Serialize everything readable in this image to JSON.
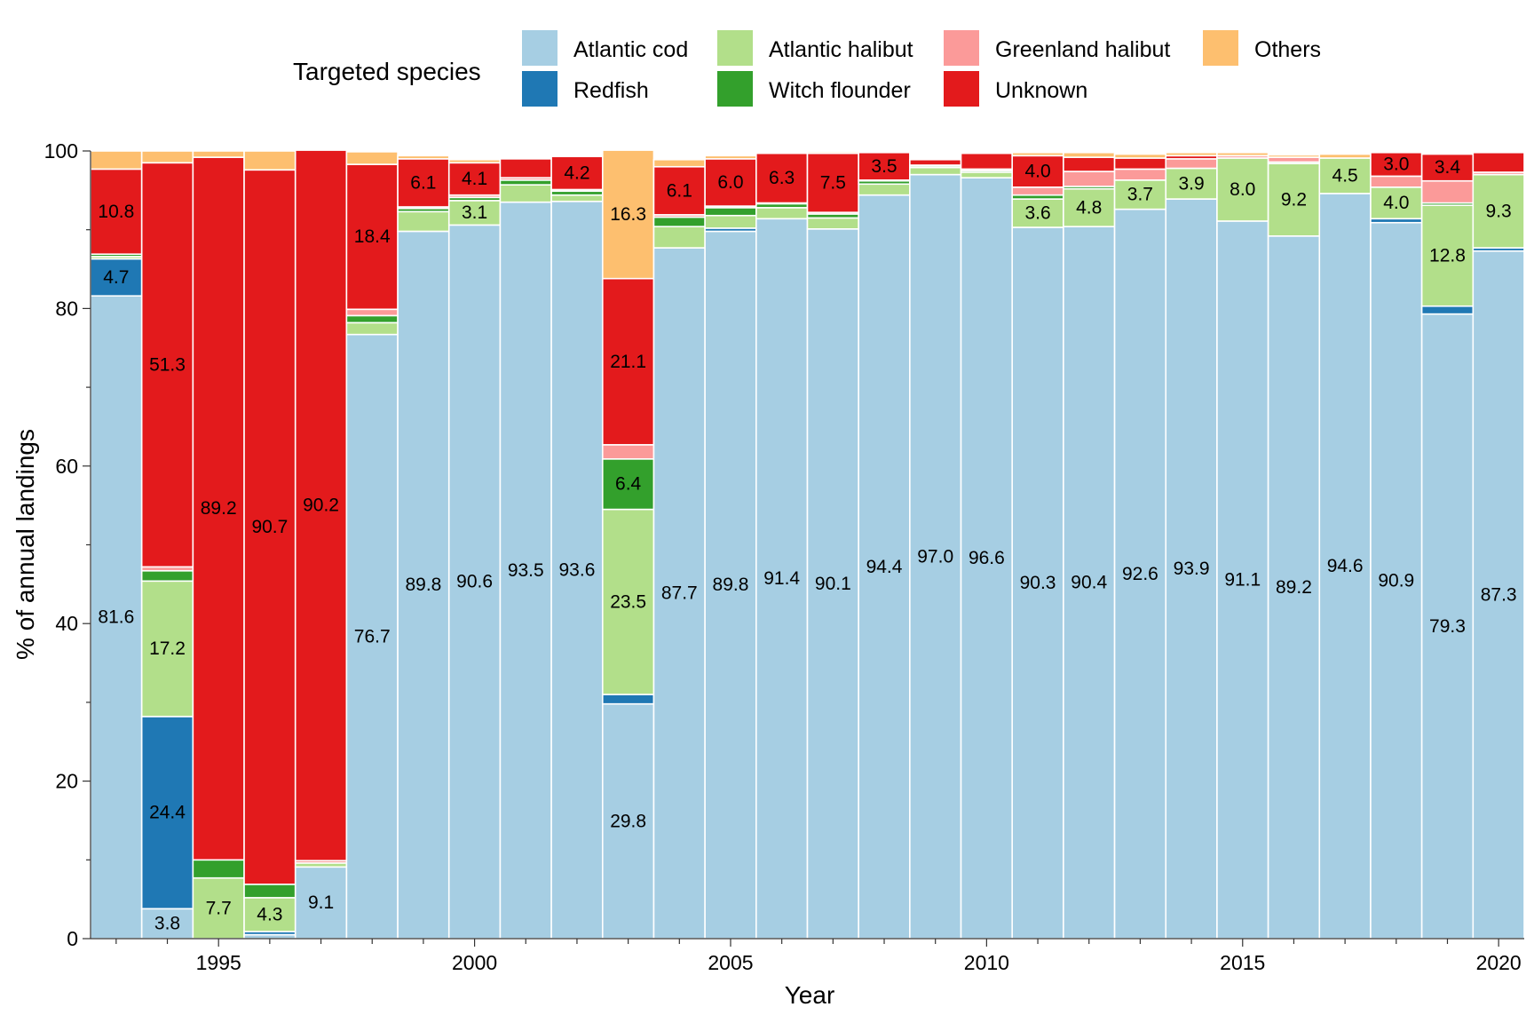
{
  "chart_data": {
    "type": "bar",
    "stacked": true,
    "xlabel": "Year",
    "ylabel": "% of annual landings",
    "ylim": [
      0,
      100
    ],
    "yticks": [
      0,
      20,
      40,
      60,
      80,
      100
    ],
    "xtick_labels": [
      "1995",
      "2000",
      "2005",
      "2010",
      "2015",
      "2020"
    ],
    "grid": false,
    "legend_title": "Targeted species",
    "legend_position": "top",
    "categories": [
      1993,
      1994,
      1995,
      1996,
      1997,
      1998,
      1999,
      2000,
      2001,
      2002,
      2003,
      2004,
      2005,
      2006,
      2007,
      2008,
      2009,
      2010,
      2011,
      2012,
      2013,
      2014,
      2015,
      2016,
      2017,
      2018,
      2019,
      2020
    ],
    "series": [
      {
        "name": "Atlantic cod",
        "color": "#a6cee3",
        "values": [
          81.6,
          3.8,
          0.0,
          0.5,
          9.1,
          76.7,
          89.8,
          90.6,
          93.5,
          93.6,
          29.8,
          87.7,
          89.8,
          91.4,
          90.1,
          94.4,
          97.0,
          96.6,
          90.3,
          90.4,
          92.6,
          93.9,
          91.1,
          89.2,
          94.6,
          90.9,
          79.3,
          87.3
        ]
      },
      {
        "name": "Redfish",
        "color": "#1f78b4",
        "values": [
          4.7,
          24.4,
          0.0,
          0.4,
          0.0,
          0.0,
          0.0,
          0.0,
          0.0,
          0.0,
          1.2,
          0.0,
          0.4,
          0.0,
          0.0,
          0.0,
          0.0,
          0.0,
          0.0,
          0.0,
          0.0,
          0.0,
          0.0,
          0.0,
          0.0,
          0.5,
          1.0,
          0.4
        ]
      },
      {
        "name": "Atlantic halibut",
        "color": "#b2df8a",
        "values": [
          0.3,
          17.2,
          7.7,
          4.3,
          0.5,
          1.5,
          2.5,
          3.1,
          2.2,
          0.8,
          23.5,
          2.7,
          1.6,
          1.4,
          1.4,
          1.4,
          0.9,
          0.7,
          3.6,
          4.8,
          3.7,
          3.9,
          8.0,
          9.2,
          4.5,
          4.0,
          12.8,
          9.3
        ]
      },
      {
        "name": "Witch flounder",
        "color": "#33a02c",
        "values": [
          0.3,
          1.3,
          2.3,
          1.7,
          0.0,
          0.9,
          0.4,
          0.4,
          0.6,
          0.5,
          6.4,
          1.2,
          1.0,
          0.5,
          0.5,
          0.4,
          0.2,
          0.2,
          0.5,
          0.3,
          0.0,
          0.0,
          0.0,
          0.2,
          0.0,
          0.0,
          0.3,
          0.0
        ]
      },
      {
        "name": "Greenland halibut",
        "color": "#fb9a99",
        "values": [
          0.0,
          0.5,
          0.0,
          0.0,
          0.3,
          0.8,
          0.2,
          0.3,
          0.3,
          0.2,
          1.8,
          0.3,
          0.2,
          0.1,
          0.2,
          0.1,
          0.1,
          0.2,
          1.0,
          1.9,
          1.4,
          1.2,
          0.3,
          0.6,
          0.0,
          1.4,
          2.8,
          0.3
        ]
      },
      {
        "name": "Unknown",
        "color": "#e31a1c",
        "values": [
          10.8,
          51.3,
          89.2,
          90.7,
          90.2,
          18.4,
          6.1,
          4.1,
          2.4,
          4.2,
          21.1,
          6.1,
          6.0,
          6.3,
          7.5,
          3.5,
          0.7,
          2.0,
          4.0,
          1.8,
          1.4,
          0.4,
          0.0,
          0.0,
          0.0,
          3.0,
          3.4,
          2.5
        ]
      },
      {
        "name": "Others",
        "color": "#fdbf6f",
        "values": [
          2.3,
          1.5,
          0.8,
          2.4,
          0.0,
          1.6,
          0.4,
          0.4,
          0.0,
          0.1,
          16.3,
          0.9,
          0.4,
          0.0,
          0.2,
          0.0,
          0.0,
          0.0,
          0.4,
          0.6,
          0.5,
          0.4,
          0.4,
          0.3,
          0.5,
          0.0,
          0.0,
          0.0
        ]
      }
    ],
    "data_labels": [
      {
        "year": 1993,
        "series": "Atlantic cod",
        "text": "81.6"
      },
      {
        "year": 1993,
        "series": "Redfish",
        "text": "4.7"
      },
      {
        "year": 1993,
        "series": "Unknown",
        "text": "10.8"
      },
      {
        "year": 1994,
        "series": "Atlantic cod",
        "text": "3.8"
      },
      {
        "year": 1994,
        "series": "Redfish",
        "text": "24.4"
      },
      {
        "year": 1994,
        "series": "Atlantic halibut",
        "text": "17.2"
      },
      {
        "year": 1994,
        "series": "Unknown",
        "text": "51.3"
      },
      {
        "year": 1995,
        "series": "Atlantic halibut",
        "text": "7.7"
      },
      {
        "year": 1995,
        "series": "Unknown",
        "text": "89.2"
      },
      {
        "year": 1996,
        "series": "Atlantic halibut",
        "text": "4.3"
      },
      {
        "year": 1996,
        "series": "Unknown",
        "text": "90.7"
      },
      {
        "year": 1997,
        "series": "Atlantic cod",
        "text": "9.1"
      },
      {
        "year": 1997,
        "series": "Unknown",
        "text": "90.2"
      },
      {
        "year": 1998,
        "series": "Atlantic cod",
        "text": "76.7"
      },
      {
        "year": 1998,
        "series": "Unknown",
        "text": "18.4"
      },
      {
        "year": 1999,
        "series": "Atlantic cod",
        "text": "89.8"
      },
      {
        "year": 1999,
        "series": "Unknown",
        "text": "6.1"
      },
      {
        "year": 2000,
        "series": "Atlantic cod",
        "text": "90.6"
      },
      {
        "year": 2000,
        "series": "Atlantic halibut",
        "text": "3.1"
      },
      {
        "year": 2000,
        "series": "Unknown",
        "text": "4.1"
      },
      {
        "year": 2001,
        "series": "Atlantic cod",
        "text": "93.5"
      },
      {
        "year": 2002,
        "series": "Atlantic cod",
        "text": "93.6"
      },
      {
        "year": 2002,
        "series": "Unknown",
        "text": "4.2"
      },
      {
        "year": 2003,
        "series": "Atlantic cod",
        "text": "29.8"
      },
      {
        "year": 2003,
        "series": "Atlantic halibut",
        "text": "23.5"
      },
      {
        "year": 2003,
        "series": "Witch flounder",
        "text": "6.4"
      },
      {
        "year": 2003,
        "series": "Unknown",
        "text": "21.1"
      },
      {
        "year": 2003,
        "series": "Others",
        "text": "16.3"
      },
      {
        "year": 2004,
        "series": "Atlantic cod",
        "text": "87.7"
      },
      {
        "year": 2004,
        "series": "Unknown",
        "text": "6.1"
      },
      {
        "year": 2005,
        "series": "Atlantic cod",
        "text": "89.8"
      },
      {
        "year": 2005,
        "series": "Unknown",
        "text": "6.0"
      },
      {
        "year": 2006,
        "series": "Atlantic cod",
        "text": "91.4"
      },
      {
        "year": 2006,
        "series": "Unknown",
        "text": "6.3"
      },
      {
        "year": 2007,
        "series": "Atlantic cod",
        "text": "90.1"
      },
      {
        "year": 2007,
        "series": "Unknown",
        "text": "7.5"
      },
      {
        "year": 2008,
        "series": "Atlantic cod",
        "text": "94.4"
      },
      {
        "year": 2008,
        "series": "Unknown",
        "text": "3.5"
      },
      {
        "year": 2009,
        "series": "Atlantic cod",
        "text": "97.0"
      },
      {
        "year": 2010,
        "series": "Atlantic cod",
        "text": "96.6"
      },
      {
        "year": 2011,
        "series": "Atlantic cod",
        "text": "90.3"
      },
      {
        "year": 2011,
        "series": "Atlantic halibut",
        "text": "3.6"
      },
      {
        "year": 2011,
        "series": "Unknown",
        "text": "4.0"
      },
      {
        "year": 2012,
        "series": "Atlantic cod",
        "text": "90.4"
      },
      {
        "year": 2012,
        "series": "Atlantic halibut",
        "text": "4.8"
      },
      {
        "year": 2013,
        "series": "Atlantic cod",
        "text": "92.6"
      },
      {
        "year": 2013,
        "series": "Atlantic halibut",
        "text": "3.7"
      },
      {
        "year": 2014,
        "series": "Atlantic cod",
        "text": "93.9"
      },
      {
        "year": 2014,
        "series": "Atlantic halibut",
        "text": "3.9"
      },
      {
        "year": 2015,
        "series": "Atlantic cod",
        "text": "91.1"
      },
      {
        "year": 2015,
        "series": "Atlantic halibut",
        "text": "8.0"
      },
      {
        "year": 2016,
        "series": "Atlantic cod",
        "text": "89.2"
      },
      {
        "year": 2016,
        "series": "Atlantic halibut",
        "text": "9.2"
      },
      {
        "year": 2017,
        "series": "Atlantic cod",
        "text": "94.6"
      },
      {
        "year": 2017,
        "series": "Atlantic halibut",
        "text": "4.5"
      },
      {
        "year": 2018,
        "series": "Atlantic cod",
        "text": "90.9"
      },
      {
        "year": 2018,
        "series": "Atlantic halibut",
        "text": "4.0"
      },
      {
        "year": 2018,
        "series": "Unknown",
        "text": "3.0"
      },
      {
        "year": 2019,
        "series": "Atlantic cod",
        "text": "79.3"
      },
      {
        "year": 2019,
        "series": "Atlantic halibut",
        "text": "12.8"
      },
      {
        "year": 2019,
        "series": "Unknown",
        "text": "3.4"
      },
      {
        "year": 2020,
        "series": "Atlantic cod",
        "text": "87.3"
      },
      {
        "year": 2020,
        "series": "Atlantic halibut",
        "text": "9.3"
      }
    ]
  }
}
